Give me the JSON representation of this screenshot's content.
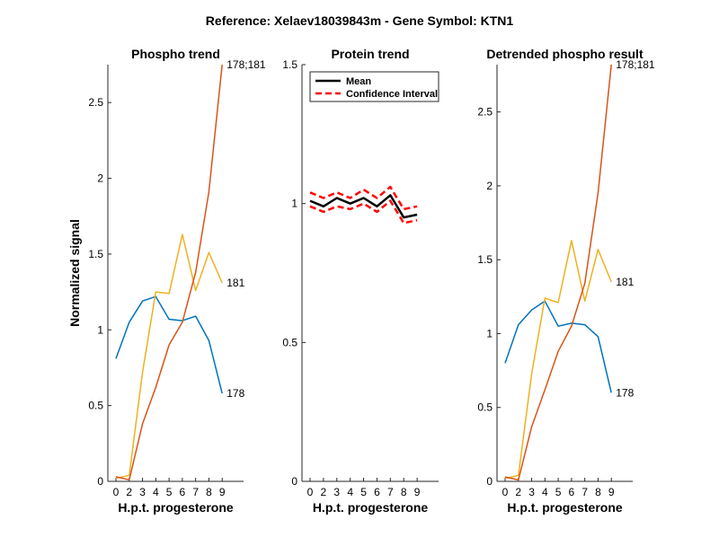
{
  "figure_title": "Reference:  Xelaev18039843m - Gene Symbol:  KTN1",
  "colors": {
    "s178": "#0072BD",
    "s181": "#EDB120",
    "s178_181": "#D95319",
    "mean": "#000000",
    "ci": "#FF0000"
  },
  "chart_data": [
    {
      "type": "line",
      "title": "Phospho trend",
      "xlabel": "H.p.t. progesterone",
      "ylabel": "Normalized signal",
      "x": [
        0,
        2,
        3,
        4,
        5,
        6,
        7,
        8,
        9
      ],
      "xticks": [
        0,
        2,
        3,
        4,
        5,
        6,
        7,
        8,
        9
      ],
      "ylim": [
        0,
        2.75
      ],
      "yticks": [
        0,
        0.5,
        1,
        1.5,
        2,
        2.5
      ],
      "ytick_labels": [
        "0",
        "0.5",
        "1",
        "1.5",
        "2",
        "2.5"
      ],
      "series": [
        {
          "name": "178",
          "color_key": "s178",
          "values": [
            0.81,
            1.05,
            1.19,
            1.22,
            1.07,
            1.06,
            1.09,
            0.93,
            0.58
          ]
        },
        {
          "name": "181",
          "color_key": "s181",
          "values": [
            0.02,
            0.04,
            0.72,
            1.25,
            1.24,
            1.63,
            1.26,
            1.51,
            1.31
          ]
        },
        {
          "name": "178;181",
          "color_key": "s178_181",
          "values": [
            0.03,
            0.01,
            0.38,
            0.62,
            0.9,
            1.05,
            1.38,
            1.91,
            2.75
          ]
        }
      ]
    },
    {
      "type": "line",
      "title": "Protein trend",
      "xlabel": "H.p.t. progesterone",
      "ylabel": "",
      "x": [
        0,
        2,
        3,
        4,
        5,
        6,
        7,
        8,
        9
      ],
      "xticks": [
        0,
        2,
        3,
        4,
        5,
        6,
        7,
        8,
        9
      ],
      "ylim": [
        0,
        1.5
      ],
      "yticks": [
        0,
        0.5,
        1,
        1.5
      ],
      "ytick_labels": [
        "0",
        "0.5",
        "1",
        "1.5"
      ],
      "legend": [
        "Mean",
        "Confidence Interval"
      ],
      "series": [
        {
          "name": "Mean",
          "color_key": "mean",
          "values": [
            1.01,
            0.99,
            1.02,
            1.0,
            1.02,
            0.99,
            1.03,
            0.95,
            0.96
          ]
        },
        {
          "name": "Confidence Interval",
          "color_key": "ci",
          "values": [
            1.04,
            1.02,
            1.04,
            1.02,
            1.05,
            1.02,
            1.06,
            0.98,
            0.99
          ]
        },
        {
          "name": "Confidence Interval",
          "color_key": "ci",
          "values": [
            0.99,
            0.97,
            0.99,
            0.98,
            1.0,
            0.97,
            1.01,
            0.93,
            0.94
          ]
        }
      ]
    },
    {
      "type": "line",
      "title": "Detrended phospho result",
      "xlabel": "H.p.t. progesterone",
      "ylabel": "",
      "x": [
        0,
        2,
        3,
        4,
        5,
        6,
        7,
        8,
        9
      ],
      "xticks": [
        0,
        2,
        3,
        4,
        5,
        6,
        7,
        8,
        9
      ],
      "ylim": [
        0,
        2.82
      ],
      "yticks": [
        0,
        0.5,
        1,
        1.5,
        2,
        2.5
      ],
      "ytick_labels": [
        "0",
        "0.5",
        "1",
        "1.5",
        "2",
        "2.5"
      ],
      "series": [
        {
          "name": "178",
          "color_key": "s178",
          "values": [
            0.8,
            1.06,
            1.16,
            1.22,
            1.05,
            1.07,
            1.06,
            0.98,
            0.6
          ]
        },
        {
          "name": "181",
          "color_key": "s181",
          "values": [
            0.02,
            0.04,
            0.73,
            1.24,
            1.21,
            1.63,
            1.22,
            1.57,
            1.35
          ]
        },
        {
          "name": "178;181",
          "color_key": "s178_181",
          "values": [
            0.03,
            0.01,
            0.37,
            0.62,
            0.88,
            1.05,
            1.34,
            1.95,
            2.82
          ]
        }
      ]
    }
  ]
}
